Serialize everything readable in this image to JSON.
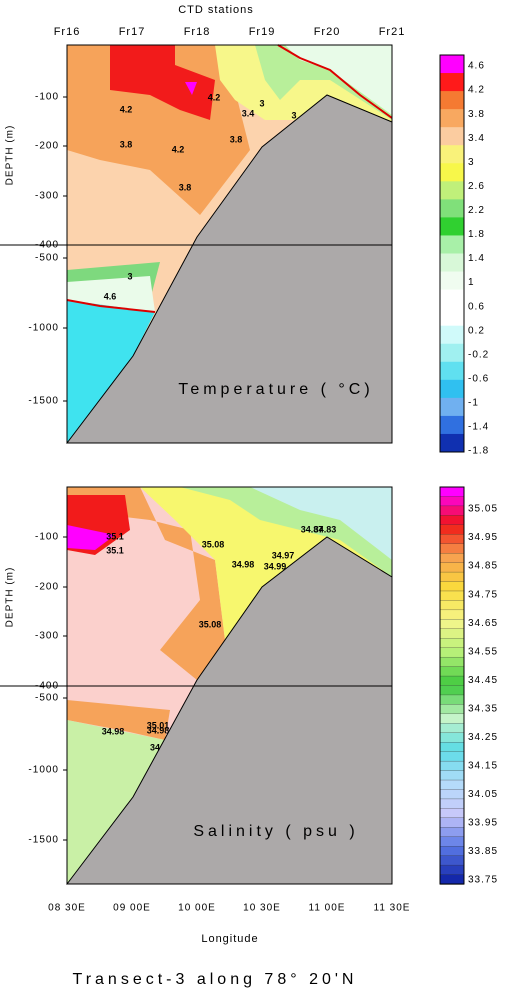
{
  "header": {
    "title": "CTD stations",
    "stations": [
      "Fr16",
      "Fr17",
      "Fr18",
      "Fr19",
      "Fr20",
      "Fr21"
    ]
  },
  "panels": [
    {
      "label": "Temperature ( °C)",
      "depth_label": "DEPTH (m)",
      "depth_ticks": [
        "-100",
        "-200",
        "-300",
        "-400",
        "-500",
        "-1000",
        "-1500"
      ],
      "colorbar": [
        "4.6",
        "4.2",
        "3.8",
        "3.4",
        "3",
        "2.6",
        "2.2",
        "1.8",
        "1.4",
        "1",
        "0.6",
        "0.2",
        "-0.2",
        "-0.6",
        "-1",
        "-1.4",
        "-1.8"
      ],
      "contour_labels": [
        "4.2",
        "3.8",
        "4.2",
        "4.2",
        "3",
        "3.4",
        "3.8",
        "3",
        "3.8",
        "3",
        "4.6"
      ]
    },
    {
      "label": "Salinity ( psu )",
      "depth_label": "DEPTH (m)",
      "depth_ticks": [
        "-100",
        "-200",
        "-300",
        "-400",
        "-500",
        "-1000",
        "-1500"
      ],
      "colorbar": [
        "35.05",
        "34.95",
        "34.85",
        "34.75",
        "34.65",
        "34.55",
        "34.45",
        "34.35",
        "34.25",
        "34.15",
        "34.05",
        "33.95",
        "33.85",
        "33.75"
      ],
      "contour_labels": [
        "35.1",
        "35.1",
        "35.08",
        "34.98",
        "34.97",
        "34.99",
        "34.87",
        "34.83",
        "35.08",
        "34.98",
        "35.01",
        "34.98",
        "34"
      ]
    }
  ],
  "x_ticks": [
    "08 30E",
    "09 00E",
    "10 00E",
    "10 30E",
    "11 00E",
    "11 30E"
  ],
  "x_label": "Longitude",
  "footer": {
    "title": "Transect-3 along 78° 20'N"
  }
}
